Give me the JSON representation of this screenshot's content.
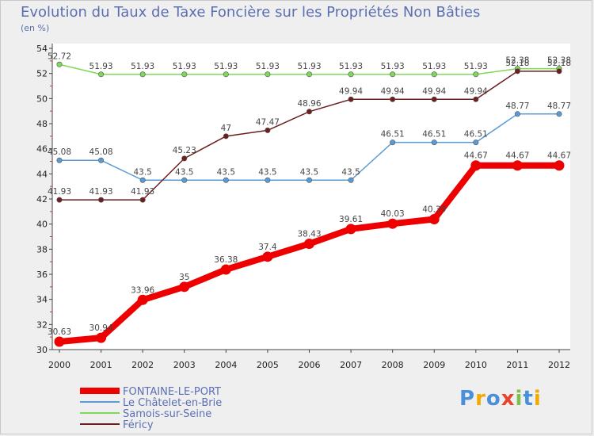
{
  "chart_data": {
    "type": "line",
    "title": "Evolution du Taux de Taxe Foncière sur les Propriétés Non Bâties",
    "unit_label": "(en %)",
    "xlabel": "",
    "ylabel": "",
    "x": [
      "2000",
      "2001",
      "2002",
      "2003",
      "2004",
      "2005",
      "2006",
      "2007",
      "2008",
      "2009",
      "2010",
      "2011",
      "2012"
    ],
    "ylim": [
      30,
      54
    ],
    "yticks": [
      30,
      32,
      34,
      36,
      38,
      40,
      42,
      44,
      46,
      48,
      50,
      52,
      54
    ],
    "grid": false,
    "legend_position": "bottom-left",
    "series": [
      {
        "name": "FONTAINE-LE-PORT",
        "color": "#ee0000",
        "emphasis": true,
        "values": [
          30.63,
          30.94,
          33.96,
          35,
          36.38,
          37.4,
          38.43,
          39.61,
          40.03,
          40.39,
          44.67,
          44.67,
          44.67
        ],
        "labels": [
          "30.63",
          "30.94",
          "33.96",
          "35",
          "36.38",
          "37.4",
          "38.43",
          "39.61",
          "40.03",
          "40.39",
          "44.67",
          "44.67",
          "44.67"
        ]
      },
      {
        "name": "Le Châtelet-en-Brie",
        "color": "#5b9bd5",
        "emphasis": false,
        "values": [
          45.08,
          45.08,
          43.5,
          43.5,
          43.5,
          43.5,
          43.5,
          43.5,
          46.51,
          46.51,
          46.51,
          48.77,
          48.77
        ],
        "labels": [
          "45.08",
          "45.08",
          "43.5",
          "43.5",
          "43.5",
          "43.5",
          "43.5",
          "43.5",
          "46.51",
          "46.51",
          "46.51",
          "48.77",
          "48.77"
        ]
      },
      {
        "name": "Samois-sur-Seine",
        "color": "#7ed957",
        "emphasis": false,
        "values": [
          52.72,
          51.93,
          51.93,
          51.93,
          51.93,
          51.93,
          51.93,
          51.93,
          51.93,
          51.93,
          51.93,
          52.38,
          52.38
        ],
        "labels": [
          "52.72",
          "51.93",
          "51.93",
          "51.93",
          "51.93",
          "51.93",
          "51.93",
          "51.93",
          "51.93",
          "51.93",
          "51.93",
          "52.38",
          "52.38"
        ]
      },
      {
        "name": "Féricy",
        "color": "#6b1f1f",
        "emphasis": false,
        "values": [
          41.93,
          41.93,
          41.93,
          45.23,
          47,
          47.47,
          48.96,
          49.94,
          49.94,
          49.94,
          49.94,
          52.18,
          52.18
        ],
        "labels": [
          "41.93",
          "41.93",
          "41.93",
          "45.23",
          "47",
          "47.47",
          "48.96",
          "49.94",
          "49.94",
          "49.94",
          "49.94",
          "52.18",
          "52.18"
        ]
      }
    ]
  },
  "logo": {
    "text": "Proxiti",
    "letters": [
      "P",
      "r",
      "o",
      "x",
      "i",
      "t",
      "i"
    ],
    "colors": [
      "#4a90d9",
      "#f2a900",
      "#4a90d9",
      "#e8432e",
      "#7cc04b",
      "#4a90d9",
      "#f2a900"
    ]
  }
}
